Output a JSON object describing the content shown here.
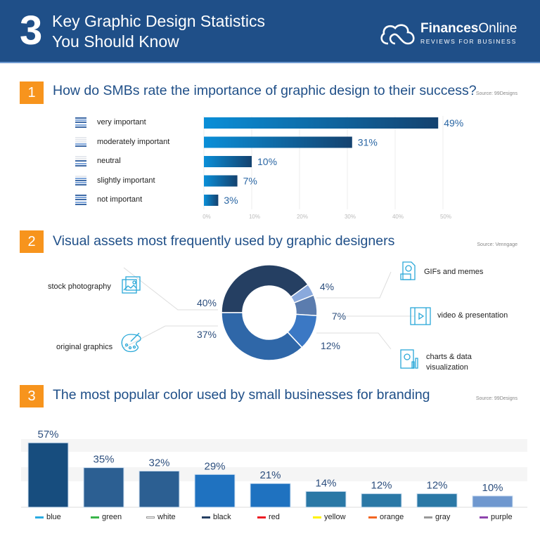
{
  "header": {
    "number": "3",
    "title_line1": "Key Graphic Design Statistics",
    "title_line2": "You Should Know",
    "brand_bold": "Finances",
    "brand_light": "Online",
    "tagline": "REVIEWS FOR BUSINESS",
    "bg_color": "#1f4f88"
  },
  "sections": [
    {
      "number": "1",
      "title": "How do SMBs rate the importance of graphic design to their success?",
      "source": "Source: 99Designs"
    },
    {
      "number": "2",
      "title": "Visual assets most frequently used by graphic designers",
      "source": "Source: Venngage"
    },
    {
      "number": "3",
      "title": "The most popular color used by small businesses for branding",
      "source": "Source: 99Designs"
    }
  ],
  "chart_data": [
    {
      "type": "bar",
      "orientation": "horizontal",
      "categories": [
        "very important",
        "moderately important",
        "neutral",
        "slightly important",
        "not important"
      ],
      "values": [
        49,
        31,
        10,
        7,
        3
      ],
      "data_labels": [
        "49%",
        "31%",
        "10%",
        "7%",
        "3%"
      ],
      "xlim": [
        0,
        50
      ],
      "xticks": [
        "0%",
        "10%",
        "20%",
        "30%",
        "40%",
        "50%"
      ],
      "grid": true
    },
    {
      "type": "pie",
      "donut": true,
      "categories": [
        "stock photography",
        "GIFs and memes",
        "video & presentation",
        "charts & data visualization",
        "original graphics"
      ],
      "values": [
        40,
        4,
        7,
        12,
        37
      ],
      "data_labels": [
        "40%",
        "4%",
        "7%",
        "12%",
        "37%"
      ],
      "colors": [
        "#253f62",
        "#8aa9dc",
        "#5b7cae",
        "#3b78c4",
        "#2f67a8"
      ],
      "icons": [
        "image-icon",
        "gif-file-icon",
        "video-icon",
        "chart-report-icon",
        "palette-icon"
      ]
    },
    {
      "type": "bar",
      "categories": [
        "blue",
        "green",
        "white",
        "black",
        "red",
        "yellow",
        "orange",
        "gray",
        "purple"
      ],
      "values": [
        57,
        35,
        32,
        29,
        21,
        14,
        12,
        12,
        10
      ],
      "data_labels": [
        "57%",
        "35%",
        "32%",
        "29%",
        "21%",
        "14%",
        "12%",
        "12%",
        "10%"
      ],
      "legend_colors": [
        "#29abe2",
        "#39b54a",
        "#ffffff",
        "#253f62",
        "#ed1c24",
        "#fff200",
        "#f26522",
        "#999999",
        "#8e44ad"
      ],
      "bar_colors": [
        "#174d7e",
        "#2c5f92",
        "#2c5f92",
        "#1f72c0",
        "#1f72c0",
        "#2a78a6",
        "#2a78a6",
        "#2a78a6",
        "#6f98cf"
      ],
      "legend": "bottom"
    }
  ]
}
